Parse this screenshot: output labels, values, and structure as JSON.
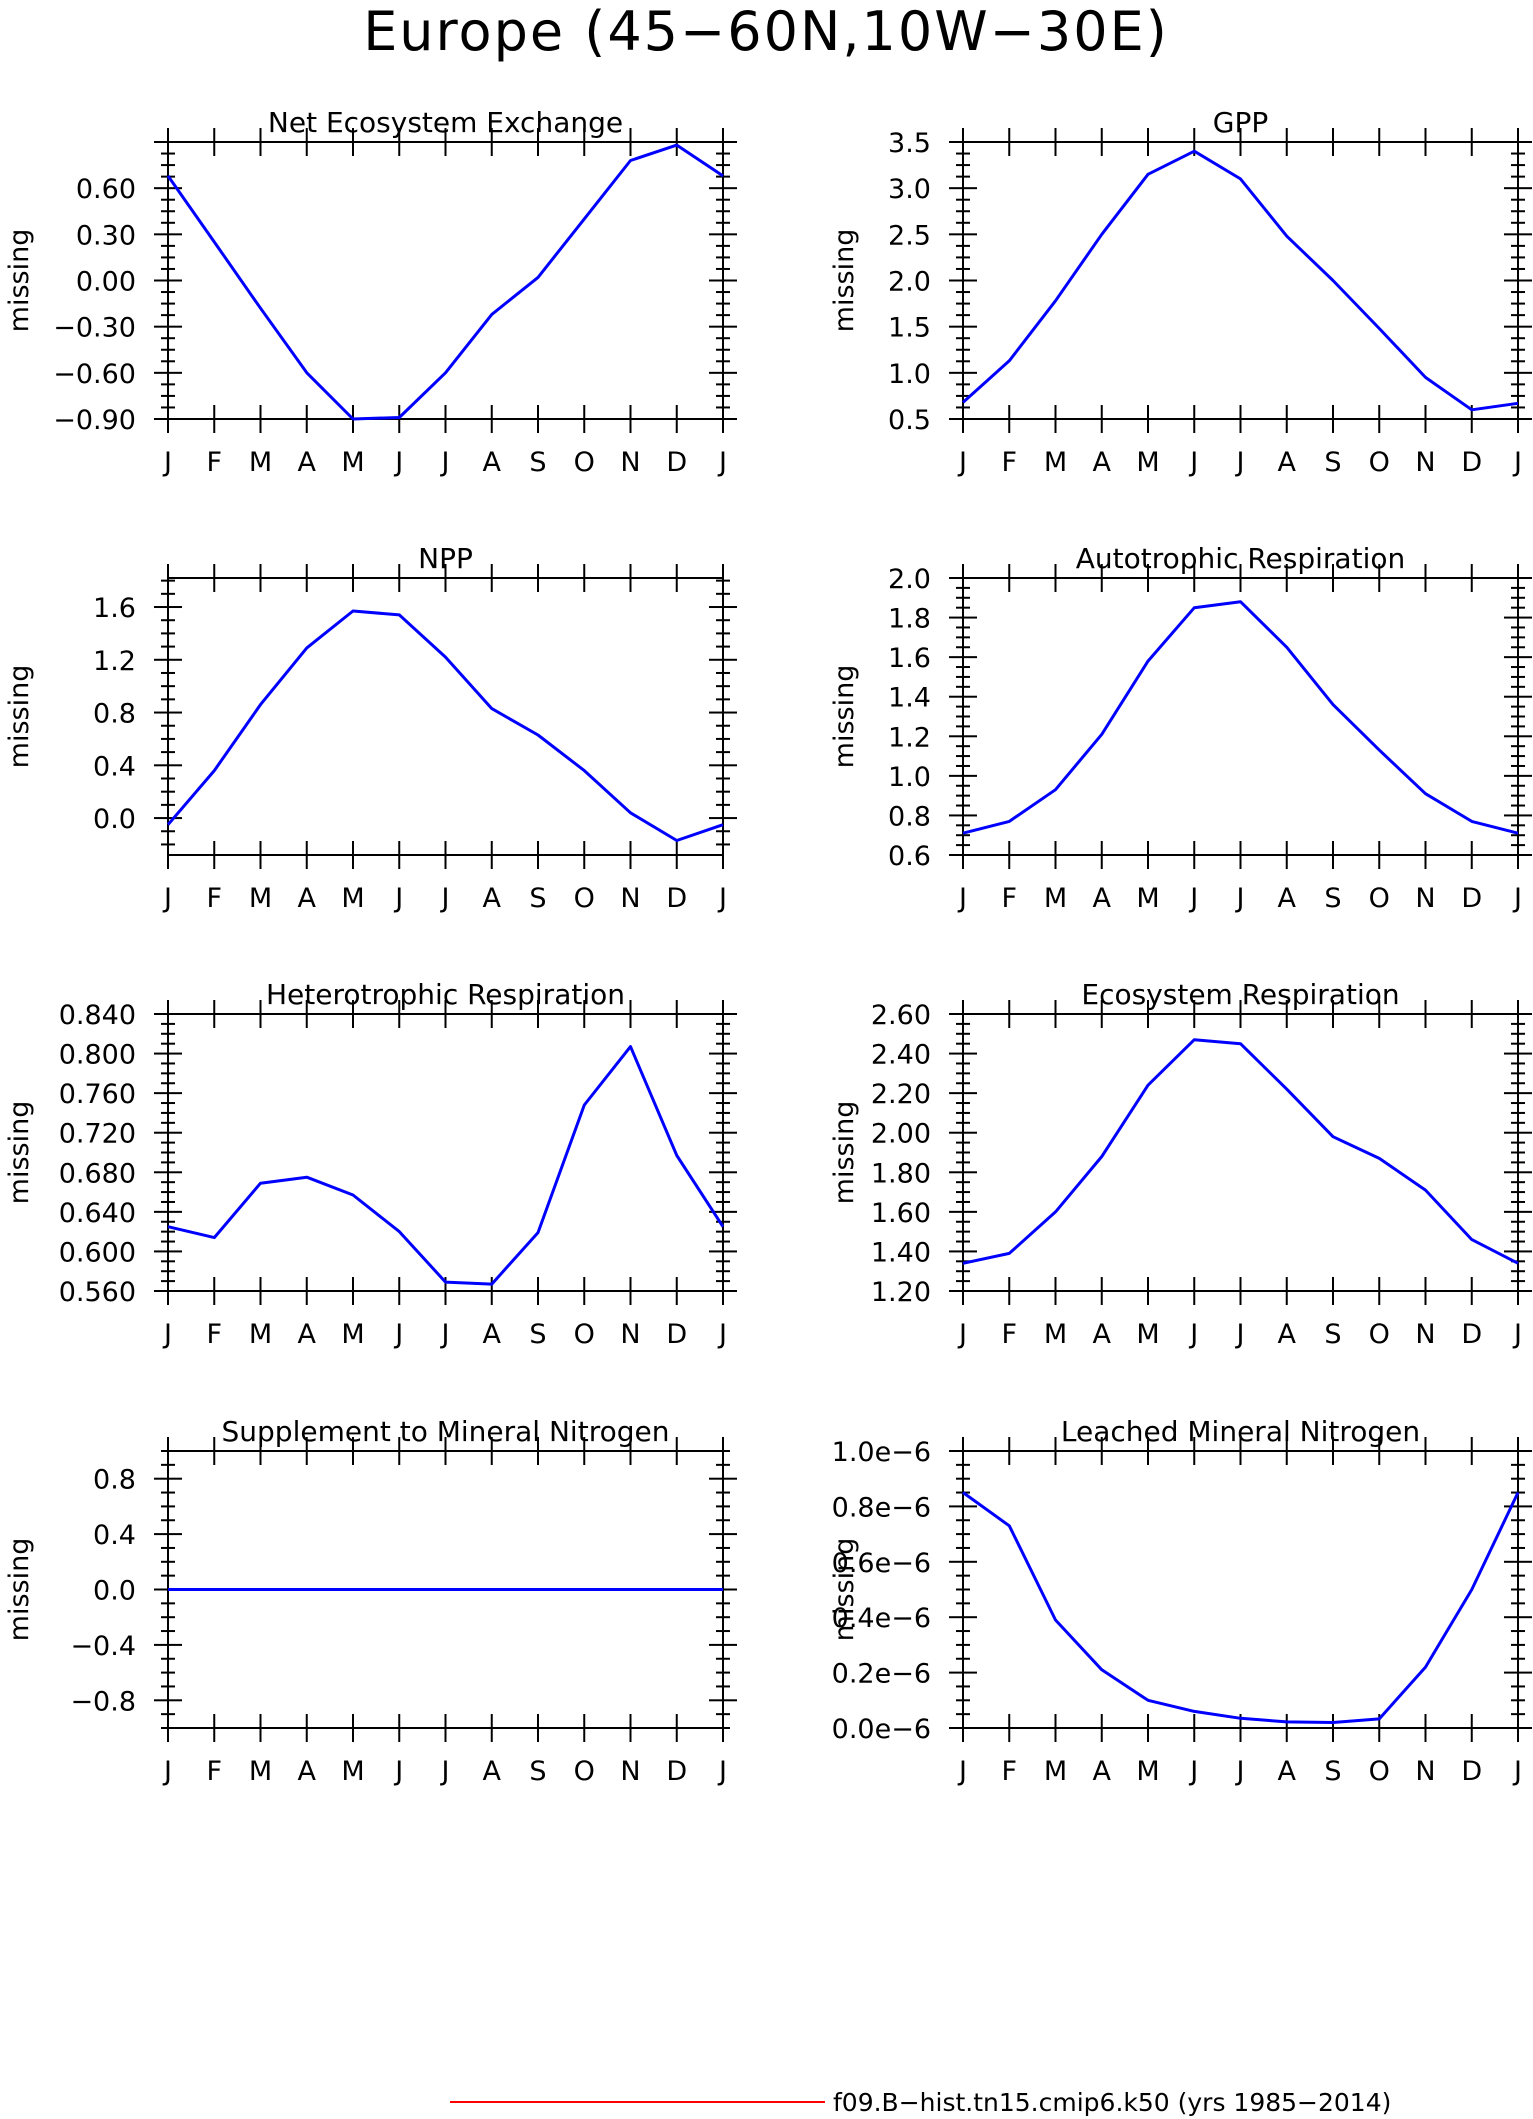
{
  "figure_title": "Europe (45−60N,10W−30E)",
  "footer": {
    "legend_text": "f09.B−hist.tn15.cmip6.k50 (yrs 1985−2014)",
    "legend_color": "#ff0000"
  },
  "colors": {
    "series": "#0000ff",
    "axis": "#000000",
    "background": "#ffffff"
  },
  "months": [
    "J",
    "F",
    "M",
    "A",
    "M",
    "J",
    "J",
    "A",
    "S",
    "O",
    "N",
    "D",
    "J"
  ],
  "chart_data": [
    {
      "type": "line",
      "title": "Net Ecosystem Exchange",
      "ylabel": "missing",
      "ylim": [
        -0.9,
        0.9
      ],
      "yticks": [
        -0.9,
        -0.6,
        -0.3,
        0.0,
        0.3,
        0.6
      ],
      "ytick_labels": [
        "−0.90",
        "−0.60",
        "−0.30",
        "0.00",
        "0.30",
        "0.60"
      ],
      "x": [
        "J",
        "F",
        "M",
        "A",
        "M",
        "J",
        "J",
        "A",
        "S",
        "O",
        "N",
        "D",
        "J"
      ],
      "values": [
        0.68,
        0.25,
        -0.18,
        -0.6,
        -0.9,
        -0.89,
        -0.6,
        -0.22,
        0.02,
        0.4,
        0.78,
        0.88,
        0.68
      ]
    },
    {
      "type": "line",
      "title": "GPP",
      "ylabel": "missing",
      "ylim": [
        0.5,
        3.5
      ],
      "yticks": [
        0.5,
        1.0,
        1.5,
        2.0,
        2.5,
        3.0,
        3.5
      ],
      "ytick_labels": [
        "0.5",
        "1.0",
        "1.5",
        "2.0",
        "2.5",
        "3.0",
        "3.5"
      ],
      "x": [
        "J",
        "F",
        "M",
        "A",
        "M",
        "J",
        "J",
        "A",
        "S",
        "O",
        "N",
        "D",
        "J"
      ],
      "values": [
        0.68,
        1.13,
        1.78,
        2.5,
        3.15,
        3.4,
        3.1,
        2.48,
        2.0,
        1.48,
        0.95,
        0.6,
        0.67
      ]
    },
    {
      "type": "line",
      "title": "NPP",
      "ylabel": "missing",
      "ylim": [
        -0.28,
        1.82
      ],
      "yticks": [
        0.0,
        0.4,
        0.8,
        1.2,
        1.6
      ],
      "ytick_labels": [
        "0.0",
        "0.4",
        "0.8",
        "1.2",
        "1.6"
      ],
      "x": [
        "J",
        "F",
        "M",
        "A",
        "M",
        "J",
        "J",
        "A",
        "S",
        "O",
        "N",
        "D",
        "J"
      ],
      "values": [
        -0.05,
        0.36,
        0.86,
        1.29,
        1.57,
        1.54,
        1.22,
        0.83,
        0.63,
        0.36,
        0.04,
        -0.17,
        -0.05
      ]
    },
    {
      "type": "line",
      "title": "Autotrophic Respiration",
      "ylabel": "missing",
      "ylim": [
        0.6,
        2.0
      ],
      "yticks": [
        0.6,
        0.8,
        1.0,
        1.2,
        1.4,
        1.6,
        1.8,
        2.0
      ],
      "ytick_labels": [
        "0.6",
        "0.8",
        "1.0",
        "1.2",
        "1.4",
        "1.6",
        "1.8",
        "2.0"
      ],
      "x": [
        "J",
        "F",
        "M",
        "A",
        "M",
        "J",
        "J",
        "A",
        "S",
        "O",
        "N",
        "D",
        "J"
      ],
      "values": [
        0.71,
        0.77,
        0.93,
        1.21,
        1.58,
        1.85,
        1.88,
        1.65,
        1.36,
        1.13,
        0.91,
        0.77,
        0.71
      ]
    },
    {
      "type": "line",
      "title": "Heterotrophic Respiration",
      "ylabel": "missing",
      "ylim": [
        0.56,
        0.84
      ],
      "yticks": [
        0.56,
        0.6,
        0.64,
        0.68,
        0.72,
        0.76,
        0.8,
        0.84
      ],
      "ytick_labels": [
        "0.560",
        "0.600",
        "0.640",
        "0.680",
        "0.720",
        "0.760",
        "0.800",
        "0.840"
      ],
      "x": [
        "J",
        "F",
        "M",
        "A",
        "M",
        "J",
        "J",
        "A",
        "S",
        "O",
        "N",
        "D",
        "J"
      ],
      "values": [
        0.625,
        0.614,
        0.669,
        0.675,
        0.657,
        0.62,
        0.569,
        0.567,
        0.619,
        0.748,
        0.807,
        0.697,
        0.625
      ]
    },
    {
      "type": "line",
      "title": "Ecosystem Respiration",
      "ylabel": "missing",
      "ylim": [
        1.2,
        2.6
      ],
      "yticks": [
        1.2,
        1.4,
        1.6,
        1.8,
        2.0,
        2.2,
        2.4,
        2.6
      ],
      "ytick_labels": [
        "1.20",
        "1.40",
        "1.60",
        "1.80",
        "2.00",
        "2.20",
        "2.40",
        "2.60"
      ],
      "x": [
        "J",
        "F",
        "M",
        "A",
        "M",
        "J",
        "J",
        "A",
        "S",
        "O",
        "N",
        "D",
        "J"
      ],
      "values": [
        1.34,
        1.39,
        1.6,
        1.88,
        2.24,
        2.47,
        2.45,
        2.22,
        1.98,
        1.87,
        1.71,
        1.46,
        1.34
      ]
    },
    {
      "type": "line",
      "title": "Supplement to Mineral Nitrogen",
      "ylabel": "missing",
      "ylim": [
        -1.0,
        1.0
      ],
      "yticks": [
        -0.8,
        -0.4,
        0.0,
        0.4,
        0.8
      ],
      "ytick_labels": [
        "−0.8",
        "−0.4",
        "0.0",
        "0.4",
        "0.8"
      ],
      "x": [
        "J",
        "F",
        "M",
        "A",
        "M",
        "J",
        "J",
        "A",
        "S",
        "O",
        "N",
        "D",
        "J"
      ],
      "values": [
        0,
        0,
        0,
        0,
        0,
        0,
        0,
        0,
        0,
        0,
        0,
        0,
        0
      ]
    },
    {
      "type": "line",
      "title": "Leached Mineral Nitrogen",
      "ylabel": "missing",
      "ylim": [
        0.0,
        1.0
      ],
      "yticks": [
        0.0,
        0.2,
        0.4,
        0.6,
        0.8,
        1.0
      ],
      "ytick_labels": [
        "0.0e−6",
        "0.2e−6",
        "0.4e−6",
        "0.6e−6",
        "0.8e−6",
        "1.0e−6"
      ],
      "value_scale": "1e-6",
      "x": [
        "J",
        "F",
        "M",
        "A",
        "M",
        "J",
        "J",
        "A",
        "S",
        "O",
        "N",
        "D",
        "J"
      ],
      "values": [
        0.85,
        0.73,
        0.39,
        0.21,
        0.1,
        0.06,
        0.035,
        0.022,
        0.02,
        0.033,
        0.22,
        0.5,
        0.85
      ]
    }
  ]
}
